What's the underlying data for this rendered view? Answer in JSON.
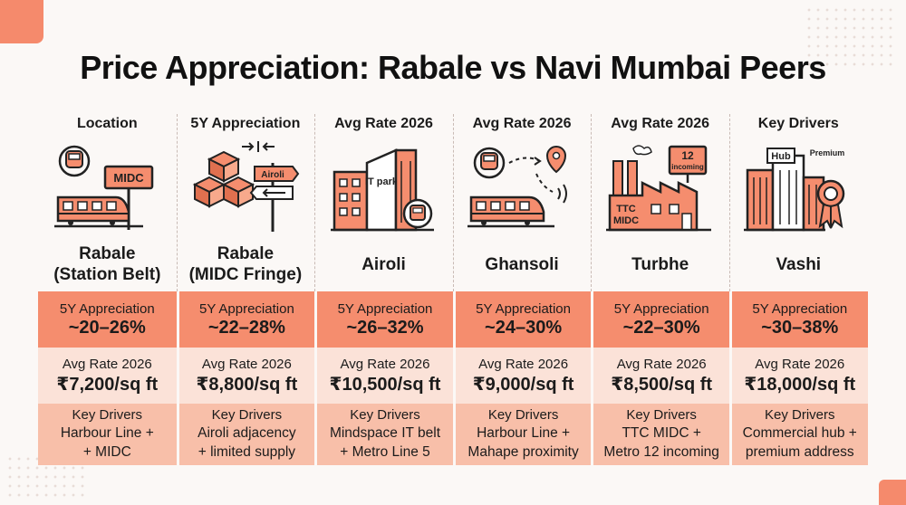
{
  "title": "Price Appreciation: Rabale vs Navi Mumbai Peers",
  "headers": [
    "Location",
    "5Y Appreciation",
    "Avg Rate 2026",
    "Avg Rate 2026",
    "Avg Rate 2026",
    "Key Drivers"
  ],
  "icon_labels": {
    "midc_sign": "MIDC",
    "airoli_sign": "Airoli",
    "it_park": "IT park",
    "incoming_num": "12",
    "incoming_text": "incoming",
    "ttc": "TTC",
    "midc": "MIDC",
    "hub": "Hub",
    "premium": "Premium"
  },
  "columns": [
    {
      "name_line1": "Rabale",
      "name_line2": "(Station Belt)",
      "appreciation_label": "5Y Appreciation",
      "appreciation": "~20–26%",
      "rate_label": "Avg Rate 2026",
      "rate": "₹7,200/sq ft",
      "drivers_label": "Key Drivers",
      "drivers_line1": "Harbour Line +",
      "drivers_line2": "+ MIDC",
      "icon": "train-midc-icon"
    },
    {
      "name_line1": "Rabale",
      "name_line2": "(MIDC Fringe)",
      "appreciation_label": "5Y Appreciation",
      "appreciation": "~22–28%",
      "rate_label": "Avg Rate 2026",
      "rate": "₹8,800/sq ft",
      "drivers_label": "Key Drivers",
      "drivers_line1": "Airoli adjacency",
      "drivers_line2": "+ limited supply",
      "icon": "boxes-signpost-icon"
    },
    {
      "name_line1": "Airoli",
      "name_line2": "",
      "appreciation_label": "5Y Appreciation",
      "appreciation": "~26–32%",
      "rate_label": "Avg Rate 2026",
      "rate": "₹10,500/sq ft",
      "drivers_label": "Key Drivers",
      "drivers_line1": "Mindspace IT belt",
      "drivers_line2": "+ Metro Line 5",
      "icon": "it-park-icon"
    },
    {
      "name_line1": "Ghansoli",
      "name_line2": "",
      "appreciation_label": "5Y Appreciation",
      "appreciation": "~24–30%",
      "rate_label": "Avg Rate 2026",
      "rate": "₹9,000/sq ft",
      "drivers_label": "Key Drivers",
      "drivers_line1": "Harbour Line +",
      "drivers_line2": "Mahape proximity",
      "icon": "train-route-icon"
    },
    {
      "name_line1": "Turbhe",
      "name_line2": "",
      "appreciation_label": "5Y Appreciation",
      "appreciation": "~22–30%",
      "rate_label": "Avg Rate 2026",
      "rate": "₹8,500/sq ft",
      "drivers_label": "Key Drivers",
      "drivers_line1": "TTC MIDC +",
      "drivers_line2": "Metro 12 incoming",
      "icon": "factory-icon"
    },
    {
      "name_line1": "Vashi",
      "name_line2": "",
      "appreciation_label": "5Y Appreciation",
      "appreciation": "~30–38%",
      "rate_label": "Avg Rate 2026",
      "rate": "₹18,000/sq ft",
      "drivers_label": "Key Drivers",
      "drivers_line1": "Commercial hub +",
      "drivers_line2": "premium address",
      "icon": "hub-premium-icon"
    }
  ],
  "colors": {
    "accent": "#f58d6e",
    "outline": "#222222",
    "band_light": "#fbe2d8",
    "band_mid": "#f8bfa9"
  }
}
